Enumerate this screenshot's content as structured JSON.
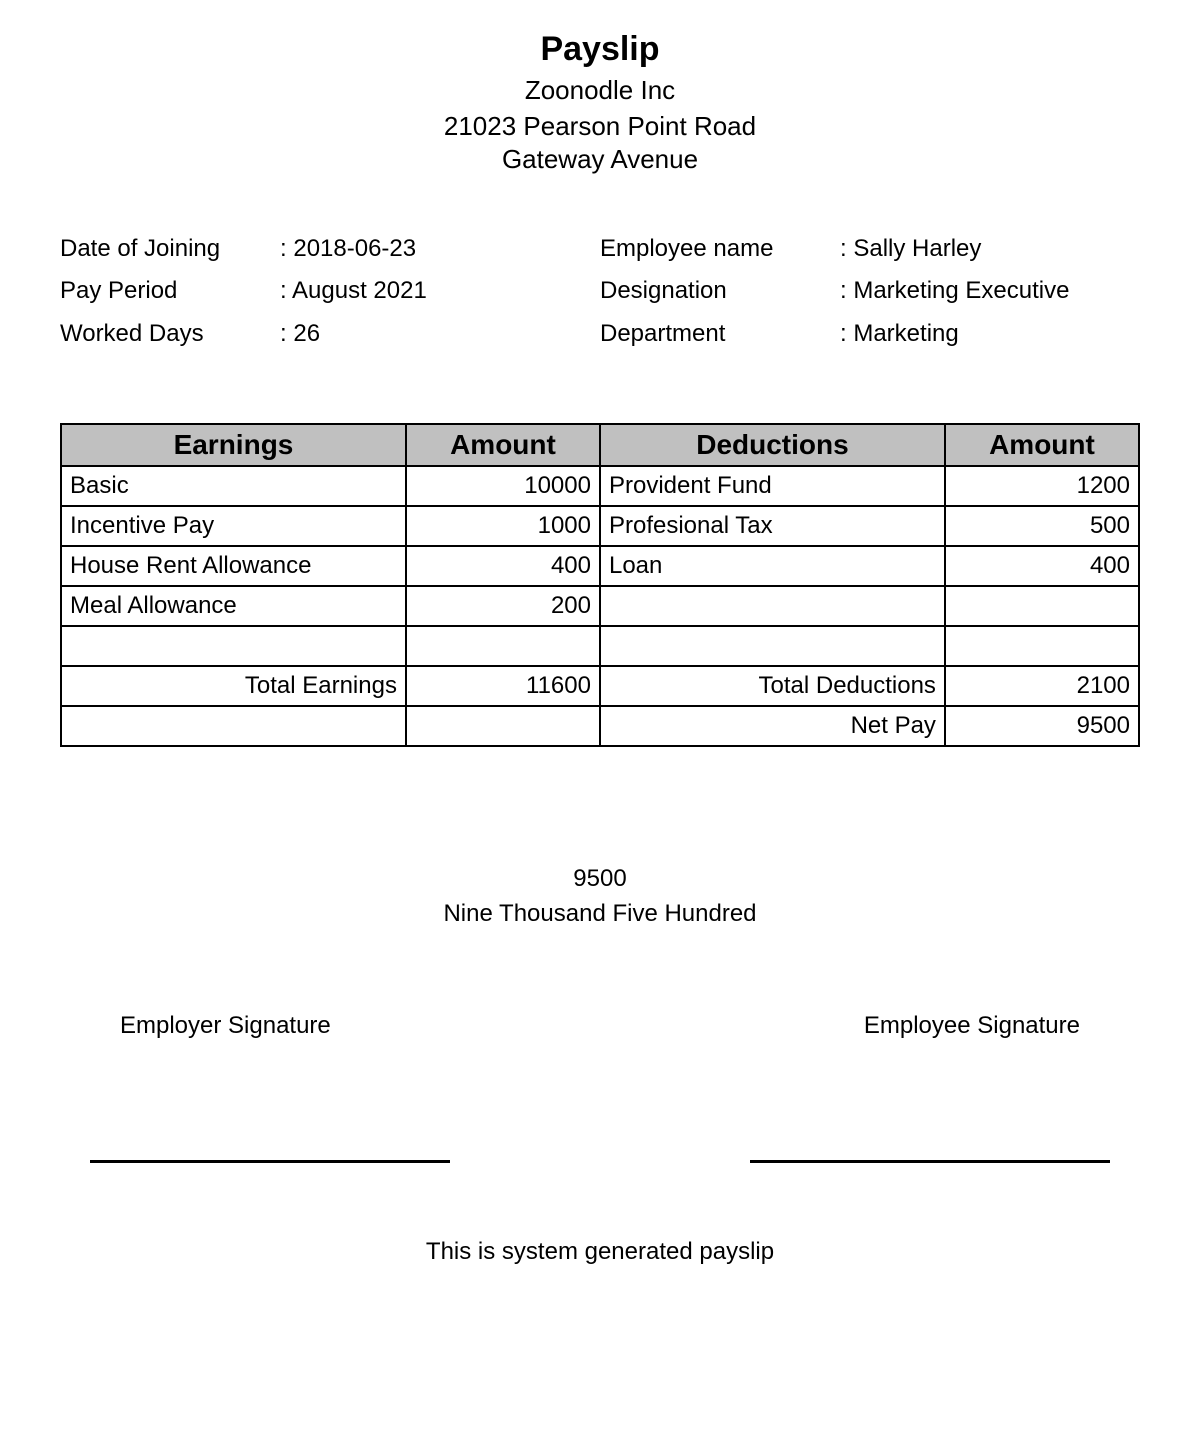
{
  "header": {
    "title": "Payslip",
    "company": "Zoonodle Inc",
    "address_line1": "21023 Pearson Point Road",
    "address_line2": "Gateway Avenue"
  },
  "info": {
    "left": {
      "date_of_joining_label": "Date of Joining",
      "date_of_joining": "2018-06-23",
      "pay_period_label": "Pay Period",
      "pay_period": "August 2021",
      "worked_days_label": "Worked Days",
      "worked_days": "26"
    },
    "right": {
      "employee_name_label": "Employee name",
      "employee_name": "Sally Harley",
      "designation_label": "Designation",
      "designation": "Marketing Executive",
      "department_label": "Department",
      "department": "Marketing"
    }
  },
  "table": {
    "headers": {
      "earnings": "Earnings",
      "earnings_amount": "Amount",
      "deductions": "Deductions",
      "deductions_amount": "Amount"
    },
    "rows": [
      {
        "e_label": "Basic",
        "e_amount": "10000",
        "d_label": "Provident Fund",
        "d_amount": "1200"
      },
      {
        "e_label": "Incentive Pay",
        "e_amount": "1000",
        "d_label": "Profesional Tax",
        "d_amount": "500"
      },
      {
        "e_label": "House Rent Allowance",
        "e_amount": "400",
        "d_label": "Loan",
        "d_amount": "400"
      },
      {
        "e_label": "Meal Allowance",
        "e_amount": "200",
        "d_label": "",
        "d_amount": ""
      }
    ],
    "totals": {
      "total_earnings_label": "Total Earnings",
      "total_earnings": "11600",
      "total_deductions_label": "Total Deductions",
      "total_deductions": "2100",
      "net_pay_label": "Net Pay",
      "net_pay": "9500"
    },
    "header_bg": "#c0c0c0",
    "border_color": "#000000"
  },
  "amount": {
    "numeric": "9500",
    "words": "Nine Thousand Five Hundred"
  },
  "signatures": {
    "employer": "Employer Signature",
    "employee": "Employee Signature"
  },
  "footer": "This is system generated payslip"
}
